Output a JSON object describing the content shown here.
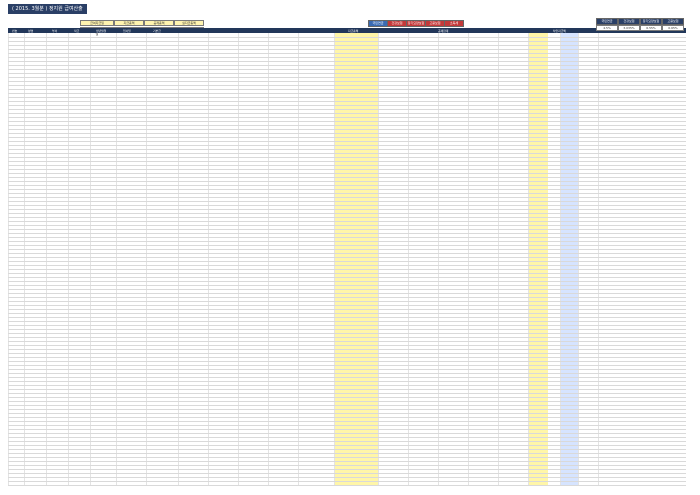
{
  "title": "( 2015. 3월분 ) 정지원 급여산출",
  "top_boxes": [
    "급여지급일",
    "지급총액",
    "공제총액",
    "실지급총액"
  ],
  "top_values": [
    "2015년 3월 25일 화요일",
    "171,250,000",
    "21,033,000",
    "150,217,000"
  ],
  "mini_headers": [
    "국민연금",
    "건강보험",
    "장기요양보험",
    "고용보험",
    "소득세"
  ],
  "mini_values": [
    "4.5%",
    "3.035%",
    "6.55%",
    "0.65%",
    ""
  ],
  "right_headers": [
    "국민연금",
    "건강보험",
    "장기요양보험",
    "고용보험"
  ],
  "right_values": [
    "4.5%",
    "3.035%",
    "6.55%",
    "0.65%"
  ],
  "table_labels": {
    "no": "번호",
    "name": "성명",
    "dept": "부서",
    "position": "직급",
    "birth": "생년월일",
    "hire": "입사일",
    "base": "기본급",
    "total": "지급총액",
    "deduct": "공제합계",
    "net": "차인지급액"
  }
}
